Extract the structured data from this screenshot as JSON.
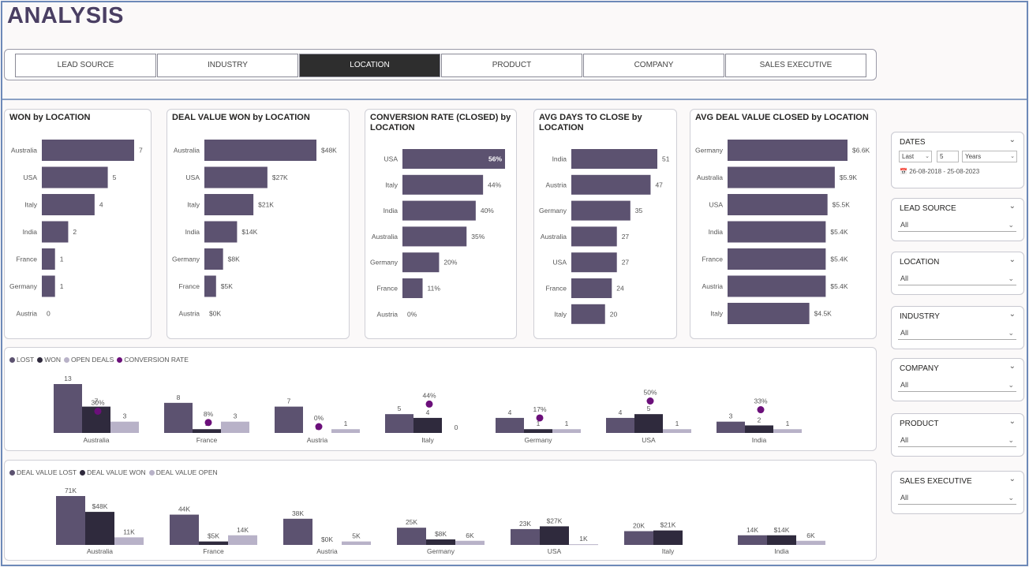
{
  "page": {
    "title": "ANALYSIS"
  },
  "tabs": [
    {
      "label": "LEAD SOURCE",
      "active": false
    },
    {
      "label": "INDUSTRY",
      "active": false
    },
    {
      "label": "LOCATION",
      "active": true
    },
    {
      "label": "PRODUCT",
      "active": false
    },
    {
      "label": "COMPANY",
      "active": false
    },
    {
      "label": "SALES EXECUTIVE",
      "active": false
    }
  ],
  "colors": {
    "bar": "#5c5270",
    "lost": "#5c5270",
    "won": "#2f2a3d",
    "open": "#b8b2c8",
    "conversion": "#6b0f7a",
    "accent": "#4a3f63"
  },
  "hbar_charts": [
    {
      "title": "WON by LOCATION",
      "max": 7,
      "rows": [
        {
          "cat": "Australia",
          "value": 7,
          "label": "7"
        },
        {
          "cat": "USA",
          "value": 5,
          "label": "5"
        },
        {
          "cat": "Italy",
          "value": 4,
          "label": "4"
        },
        {
          "cat": "India",
          "value": 2,
          "label": "2"
        },
        {
          "cat": "France",
          "value": 1,
          "label": "1"
        },
        {
          "cat": "Germany",
          "value": 1,
          "label": "1"
        },
        {
          "cat": "Austria",
          "value": 0,
          "label": "0"
        }
      ]
    },
    {
      "title": "DEAL VALUE WON by LOCATION",
      "max": 48,
      "rows": [
        {
          "cat": "Australia",
          "value": 48,
          "label": "$48K"
        },
        {
          "cat": "USA",
          "value": 27,
          "label": "$27K"
        },
        {
          "cat": "Italy",
          "value": 21,
          "label": "$21K"
        },
        {
          "cat": "India",
          "value": 14,
          "label": "$14K"
        },
        {
          "cat": "Germany",
          "value": 8,
          "label": "$8K"
        },
        {
          "cat": "France",
          "value": 5,
          "label": "$5K"
        },
        {
          "cat": "Austria",
          "value": 0,
          "label": "$0K"
        }
      ]
    },
    {
      "title": "CONVERSION RATE (CLOSED) by",
      "title2": "LOCATION",
      "max": 56,
      "rows": [
        {
          "cat": "USA",
          "value": 56,
          "label": "56%",
          "inside": true
        },
        {
          "cat": "Italy",
          "value": 44,
          "label": "44%"
        },
        {
          "cat": "India",
          "value": 40,
          "label": "40%"
        },
        {
          "cat": "Australia",
          "value": 35,
          "label": "35%"
        },
        {
          "cat": "Germany",
          "value": 20,
          "label": "20%"
        },
        {
          "cat": "France",
          "value": 11,
          "label": "11%"
        },
        {
          "cat": "Austria",
          "value": 0,
          "label": "0%"
        }
      ]
    },
    {
      "title": "AVG DAYS TO CLOSE by",
      "title2": "LOCATION",
      "max": 51,
      "rows": [
        {
          "cat": "India",
          "value": 51,
          "label": "51"
        },
        {
          "cat": "Austria",
          "value": 47,
          "label": "47"
        },
        {
          "cat": "Germany",
          "value": 35,
          "label": "35"
        },
        {
          "cat": "Australia",
          "value": 27,
          "label": "27"
        },
        {
          "cat": "USA",
          "value": 27,
          "label": "27"
        },
        {
          "cat": "France",
          "value": 24,
          "label": "24"
        },
        {
          "cat": "Italy",
          "value": 20,
          "label": "20"
        }
      ]
    },
    {
      "title": "AVG DEAL VALUE CLOSED by LOCATION",
      "max": 6.6,
      "rows": [
        {
          "cat": "Germany",
          "value": 6.6,
          "label": "$6.6K"
        },
        {
          "cat": "Australia",
          "value": 5.9,
          "label": "$5.9K"
        },
        {
          "cat": "USA",
          "value": 5.5,
          "label": "$5.5K"
        },
        {
          "cat": "India",
          "value": 5.4,
          "label": "$5.4K"
        },
        {
          "cat": "France",
          "value": 5.4,
          "label": "$5.4K"
        },
        {
          "cat": "Austria",
          "value": 5.4,
          "label": "$5.4K"
        },
        {
          "cat": "Italy",
          "value": 4.5,
          "label": "$4.5K"
        }
      ]
    }
  ],
  "chart_data": [
    {
      "type": "bar",
      "title": "WON by LOCATION",
      "categories": [
        "Australia",
        "USA",
        "Italy",
        "India",
        "France",
        "Germany",
        "Austria"
      ],
      "values": [
        7,
        5,
        4,
        2,
        1,
        1,
        0
      ]
    },
    {
      "type": "bar",
      "title": "DEAL VALUE WON by LOCATION",
      "categories": [
        "Australia",
        "USA",
        "Italy",
        "India",
        "Germany",
        "France",
        "Austria"
      ],
      "values": [
        48,
        27,
        21,
        14,
        8,
        5,
        0
      ]
    },
    {
      "type": "bar",
      "title": "CONVERSION RATE (CLOSED) by LOCATION",
      "categories": [
        "USA",
        "Italy",
        "India",
        "Australia",
        "Germany",
        "France",
        "Austria"
      ],
      "values": [
        56,
        44,
        40,
        35,
        20,
        11,
        0
      ]
    },
    {
      "type": "bar",
      "title": "AVG DAYS TO CLOSE by LOCATION",
      "categories": [
        "India",
        "Austria",
        "Germany",
        "Australia",
        "USA",
        "France",
        "Italy"
      ],
      "values": [
        51,
        47,
        35,
        27,
        27,
        24,
        20
      ]
    },
    {
      "type": "bar",
      "title": "AVG DEAL VALUE CLOSED by LOCATION",
      "categories": [
        "Germany",
        "Australia",
        "USA",
        "India",
        "France",
        "Austria",
        "Italy"
      ],
      "values": [
        6.6,
        5.9,
        5.5,
        5.4,
        5.4,
        5.4,
        4.5
      ]
    },
    {
      "type": "bar",
      "categories": [
        "Australia",
        "France",
        "Austria",
        "Italy",
        "Germany",
        "USA",
        "India"
      ],
      "series": [
        {
          "name": "LOST",
          "values": [
            13,
            8,
            7,
            5,
            4,
            4,
            3
          ]
        },
        {
          "name": "WON",
          "values": [
            7,
            1,
            0,
            4,
            1,
            5,
            2
          ]
        },
        {
          "name": "OPEN DEALS",
          "values": [
            3,
            3,
            1,
            0,
            1,
            1,
            1
          ]
        },
        {
          "name": "CONVERSION RATE",
          "values": [
            30,
            8,
            0,
            44,
            17,
            50,
            33
          ]
        }
      ]
    },
    {
      "type": "bar",
      "categories": [
        "Australia",
        "France",
        "Austria",
        "Germany",
        "USA",
        "Italy",
        "India"
      ],
      "series": [
        {
          "name": "DEAL VALUE LOST",
          "values": [
            71,
            44,
            38,
            25,
            23,
            20,
            14
          ]
        },
        {
          "name": "DEAL VALUE WON",
          "values": [
            48,
            5,
            0,
            8,
            27,
            21,
            14
          ]
        },
        {
          "name": "DEAL VALUE OPEN",
          "values": [
            11,
            14,
            5,
            6,
            1,
            null,
            6
          ]
        }
      ]
    }
  ],
  "combo1": {
    "legend": [
      "LOST",
      "WON",
      "OPEN DEALS",
      "CONVERSION RATE"
    ],
    "max": 13,
    "groups": [
      {
        "cat": "Australia",
        "lost": 13,
        "won": 7,
        "open": 3,
        "conv": 30,
        "conv_label": "30%"
      },
      {
        "cat": "France",
        "lost": 8,
        "won": 1,
        "open": 3,
        "conv": 8,
        "conv_label": "8%"
      },
      {
        "cat": "Austria",
        "lost": 7,
        "won": 0,
        "open": 1,
        "conv": 0,
        "conv_label": "0%"
      },
      {
        "cat": "Italy",
        "lost": 5,
        "won": 4,
        "open": 0,
        "conv": 44,
        "conv_label": "44%"
      },
      {
        "cat": "Germany",
        "lost": 4,
        "won": 1,
        "open": 1,
        "conv": 17,
        "conv_label": "17%"
      },
      {
        "cat": "USA",
        "lost": 4,
        "won": 5,
        "open": 1,
        "conv": 50,
        "conv_label": "50%"
      },
      {
        "cat": "India",
        "lost": 3,
        "won": 2,
        "open": 1,
        "conv": 33,
        "conv_label": "33%"
      }
    ]
  },
  "combo2": {
    "legend": [
      "DEAL VALUE LOST",
      "DEAL VALUE WON",
      "DEAL VALUE OPEN"
    ],
    "max": 71,
    "groups": [
      {
        "cat": "Australia",
        "lost": 71,
        "won": 48,
        "open": 11,
        "lost_l": "71K",
        "won_l": "$48K",
        "open_l": "11K"
      },
      {
        "cat": "France",
        "lost": 44,
        "won": 5,
        "open": 14,
        "lost_l": "44K",
        "won_l": "$5K",
        "open_l": "14K"
      },
      {
        "cat": "Austria",
        "lost": 38,
        "won": 0,
        "open": 5,
        "lost_l": "38K",
        "won_l": "$0K",
        "open_l": "5K"
      },
      {
        "cat": "Germany",
        "lost": 25,
        "won": 8,
        "open": 6,
        "lost_l": "25K",
        "won_l": "$8K",
        "open_l": "6K"
      },
      {
        "cat": "USA",
        "lost": 23,
        "won": 27,
        "open": 1,
        "lost_l": "23K",
        "won_l": "$27K",
        "open_l": "1K"
      },
      {
        "cat": "Italy",
        "lost": 20,
        "won": 21,
        "open": null,
        "lost_l": "20K",
        "won_l": "$21K",
        "open_l": ""
      },
      {
        "cat": "India",
        "lost": 14,
        "won": 14,
        "open": 6,
        "lost_l": "14K",
        "won_l": "$14K",
        "open_l": "6K"
      }
    ]
  },
  "slicers": {
    "dates": {
      "title": "DATES",
      "period": "Last",
      "count": "5",
      "unit": "Years",
      "range": "26-08-2018 - 25-08-2023"
    },
    "lead_source": {
      "title": "LEAD SOURCE",
      "value": "All"
    },
    "location": {
      "title": "LOCATION",
      "value": "All"
    },
    "industry": {
      "title": "INDUSTRY",
      "value": "All"
    },
    "company": {
      "title": "COMPANY",
      "value": "All"
    },
    "product": {
      "title": "PRODUCT",
      "value": "All"
    },
    "sales_executive": {
      "title": "SALES EXECUTIVE",
      "value": "All"
    }
  }
}
